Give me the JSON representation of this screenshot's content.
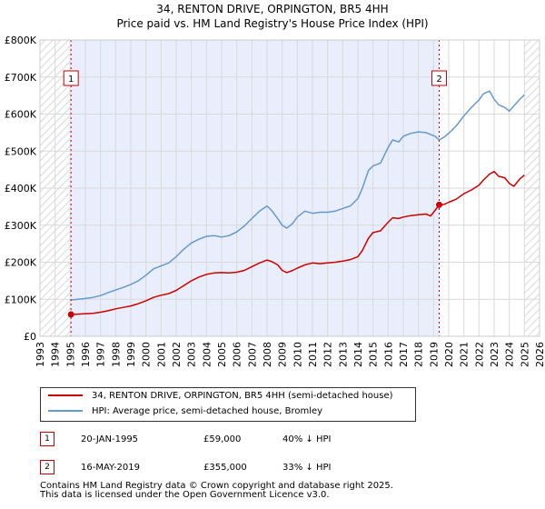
{
  "chart_data": {
    "type": "line",
    "title": "34, RENTON DRIVE, ORPINGTON, BR5 4HH",
    "subtitle": "Price paid vs. HM Land Registry's House Price Index (HPI)",
    "xlim": [
      1993,
      2026
    ],
    "ylim": [
      0,
      800000
    ],
    "x_ticks": [
      "1993",
      "1994",
      "1995",
      "1996",
      "1997",
      "1998",
      "1999",
      "2000",
      "2001",
      "2002",
      "2003",
      "2004",
      "2005",
      "2006",
      "2007",
      "2008",
      "2009",
      "2010",
      "2011",
      "2012",
      "2013",
      "2014",
      "2015",
      "2016",
      "2017",
      "2018",
      "2019",
      "2020",
      "2021",
      "2022",
      "2023",
      "2024",
      "2025",
      "2026"
    ],
    "y_ticks": [
      {
        "value": 0,
        "label": "£0"
      },
      {
        "value": 100000,
        "label": "£100K"
      },
      {
        "value": 200000,
        "label": "£200K"
      },
      {
        "value": 300000,
        "label": "£300K"
      },
      {
        "value": 400000,
        "label": "£400K"
      },
      {
        "value": 500000,
        "label": "£500K"
      },
      {
        "value": 600000,
        "label": "£600K"
      },
      {
        "value": 700000,
        "label": "£700K"
      },
      {
        "value": 800000,
        "label": "£800K"
      }
    ],
    "hatch_before": 1995.05,
    "hatch_after": 2025.0,
    "shade_range": [
      1995.05,
      2019.37
    ],
    "series": [
      {
        "name": "34, RENTON DRIVE, ORPINGTON, BR5 4HH (semi-detached house)",
        "color": "#cc0000",
        "x": [
          1995.05,
          1995.5,
          1996,
          1996.5,
          1997,
          1997.5,
          1998,
          1998.5,
          1999,
          1999.5,
          2000,
          2000.5,
          2001,
          2001.5,
          2002,
          2002.5,
          2003,
          2003.5,
          2004,
          2004.5,
          2005,
          2005.5,
          2006,
          2006.5,
          2007,
          2007.5,
          2008,
          2008.3,
          2008.7,
          2009,
          2009.3,
          2009.7,
          2010,
          2010.5,
          2011,
          2011.5,
          2012,
          2012.5,
          2013,
          2013.5,
          2014,
          2014.3,
          2014.7,
          2015,
          2015.5,
          2016,
          2016.3,
          2016.7,
          2017,
          2017.5,
          2018,
          2018.5,
          2018.8,
          2019.1,
          2019.37,
          2019.7,
          2020,
          2020.5,
          2021,
          2021.5,
          2022,
          2022.3,
          2022.7,
          2023,
          2023.3,
          2023.7,
          2024,
          2024.3,
          2024.7,
          2025.0
        ],
        "values": [
          59000,
          60000,
          61000,
          62000,
          65000,
          69000,
          74000,
          78000,
          82000,
          88000,
          96000,
          105000,
          111000,
          115000,
          124000,
          137000,
          150000,
          160000,
          167000,
          171000,
          172000,
          171000,
          173000,
          178000,
          188000,
          198000,
          206000,
          202000,
          193000,
          178000,
          172000,
          178000,
          184000,
          193000,
          198000,
          196000,
          198000,
          200000,
          203000,
          207000,
          215000,
          232000,
          265000,
          280000,
          285000,
          308000,
          320000,
          318000,
          322000,
          326000,
          328000,
          330000,
          325000,
          340000,
          355000,
          356000,
          362000,
          370000,
          385000,
          395000,
          408000,
          422000,
          438000,
          445000,
          432000,
          428000,
          413000,
          405000,
          425000,
          435000
        ]
      },
      {
        "name": "HPI: Average price, semi-detached house, Bromley",
        "color": "#6699cc",
        "x": [
          1995.05,
          1995.5,
          1996,
          1996.5,
          1997,
          1997.5,
          1998,
          1998.5,
          1999,
          1999.5,
          2000,
          2000.5,
          2001,
          2001.5,
          2002,
          2002.5,
          2003,
          2003.5,
          2004,
          2004.5,
          2005,
          2005.5,
          2006,
          2006.5,
          2007,
          2007.5,
          2008,
          2008.3,
          2008.7,
          2009,
          2009.3,
          2009.7,
          2010,
          2010.5,
          2011,
          2011.5,
          2012,
          2012.5,
          2013,
          2013.5,
          2014,
          2014.3,
          2014.7,
          2015,
          2015.5,
          2016,
          2016.3,
          2016.7,
          2017,
          2017.5,
          2018,
          2018.5,
          2018.8,
          2019.1,
          2019.37,
          2019.7,
          2020,
          2020.5,
          2021,
          2021.5,
          2022,
          2022.3,
          2022.7,
          2023,
          2023.3,
          2023.7,
          2024,
          2024.3,
          2024.7,
          2025.0
        ],
        "values": [
          98000,
          100000,
          102000,
          105000,
          110000,
          118000,
          125000,
          132000,
          140000,
          150000,
          165000,
          182000,
          190000,
          198000,
          215000,
          235000,
          252000,
          262000,
          270000,
          272000,
          268000,
          272000,
          282000,
          298000,
          318000,
          338000,
          352000,
          340000,
          318000,
          300000,
          292000,
          305000,
          322000,
          338000,
          332000,
          335000,
          335000,
          338000,
          345000,
          352000,
          372000,
          400000,
          448000,
          460000,
          468000,
          510000,
          530000,
          525000,
          540000,
          548000,
          552000,
          550000,
          545000,
          540000,
          530000,
          538000,
          548000,
          568000,
          595000,
          618000,
          638000,
          655000,
          662000,
          640000,
          625000,
          618000,
          608000,
          622000,
          640000,
          652000
        ]
      }
    ],
    "sales": [
      {
        "marker": "1",
        "year": 1995.05,
        "price": 59000,
        "date": "20-JAN-1995",
        "price_label": "£59,000",
        "hpi_delta": "40% ↓ HPI"
      },
      {
        "marker": "2",
        "year": 2019.37,
        "price": 355000,
        "date": "16-MAY-2019",
        "price_label": "£355,000",
        "hpi_delta": "33% ↓ HPI"
      }
    ]
  },
  "legend": {
    "property_label": "34, RENTON DRIVE, ORPINGTON, BR5 4HH (semi-detached house)",
    "hpi_label": "HPI: Average price, semi-detached house, Bromley"
  },
  "footer": {
    "line1": "Contains HM Land Registry data © Crown copyright and database right 2025.",
    "line2": "This data is licensed under the Open Government Licence v3.0."
  }
}
